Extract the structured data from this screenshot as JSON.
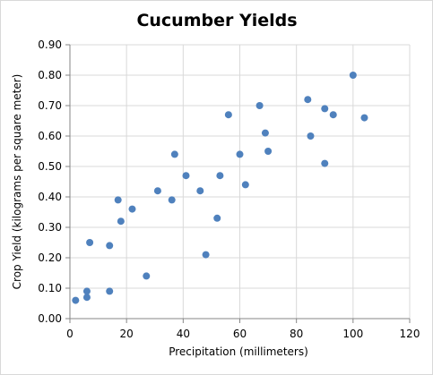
{
  "chart_data": {
    "type": "scatter",
    "title": "Cucumber Yields",
    "xlabel": "Precipitation (millimeters)",
    "ylabel": "Crop Yield (kilograms  per square meter)",
    "xlim": [
      0,
      120
    ],
    "ylim": [
      0,
      0.9
    ],
    "x_ticks": [
      "0",
      "20",
      "40",
      "60",
      "80",
      "100",
      "120"
    ],
    "y_ticks": [
      "0.00",
      "0.10",
      "0.20",
      "0.30",
      "0.40",
      "0.50",
      "0.60",
      "0.70",
      "0.80",
      "0.90"
    ],
    "grid": true,
    "legend": false,
    "marker_color": "#4f81bd",
    "series": [
      {
        "points": [
          {
            "x": 2,
            "y": 0.06
          },
          {
            "x": 6,
            "y": 0.07
          },
          {
            "x": 6,
            "y": 0.09
          },
          {
            "x": 7,
            "y": 0.25
          },
          {
            "x": 14,
            "y": 0.09
          },
          {
            "x": 14,
            "y": 0.24
          },
          {
            "x": 17,
            "y": 0.39
          },
          {
            "x": 18,
            "y": 0.32
          },
          {
            "x": 22,
            "y": 0.36
          },
          {
            "x": 27,
            "y": 0.14
          },
          {
            "x": 31,
            "y": 0.42
          },
          {
            "x": 36,
            "y": 0.39
          },
          {
            "x": 37,
            "y": 0.54
          },
          {
            "x": 41,
            "y": 0.47
          },
          {
            "x": 46,
            "y": 0.42
          },
          {
            "x": 48,
            "y": 0.21
          },
          {
            "x": 52,
            "y": 0.33
          },
          {
            "x": 53,
            "y": 0.47
          },
          {
            "x": 56,
            "y": 0.67
          },
          {
            "x": 60,
            "y": 0.54
          },
          {
            "x": 62,
            "y": 0.44
          },
          {
            "x": 67,
            "y": 0.7
          },
          {
            "x": 69,
            "y": 0.61
          },
          {
            "x": 70,
            "y": 0.55
          },
          {
            "x": 84,
            "y": 0.72
          },
          {
            "x": 85,
            "y": 0.6
          },
          {
            "x": 90,
            "y": 0.69
          },
          {
            "x": 90,
            "y": 0.51
          },
          {
            "x": 93,
            "y": 0.67
          },
          {
            "x": 100,
            "y": 0.8
          },
          {
            "x": 104,
            "y": 0.66
          }
        ]
      }
    ]
  }
}
